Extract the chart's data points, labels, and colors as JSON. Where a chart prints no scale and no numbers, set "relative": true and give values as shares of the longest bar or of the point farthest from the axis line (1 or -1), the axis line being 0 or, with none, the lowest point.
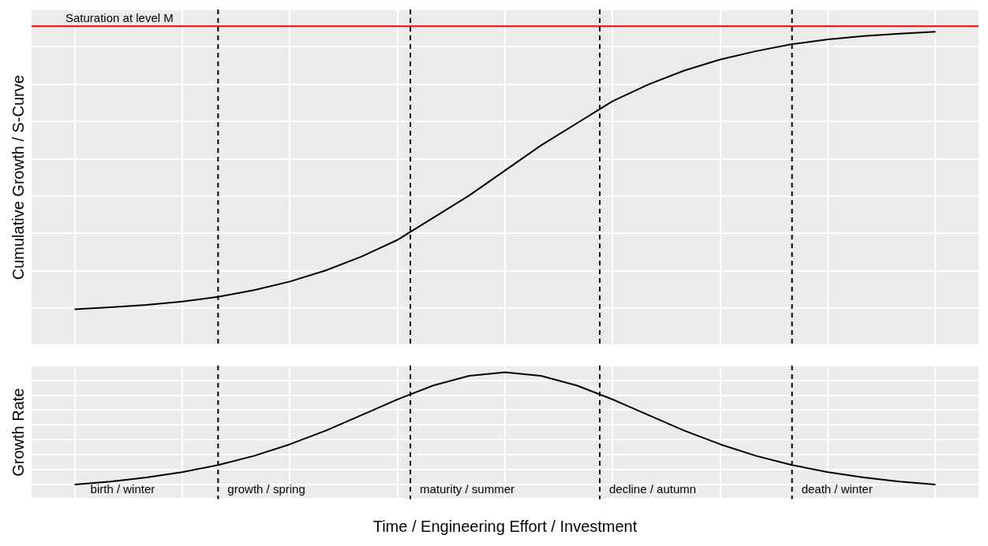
{
  "chart_data": [
    {
      "type": "line",
      "ylabel": "Cumulative Growth / S-Curve",
      "relative": true,
      "grid": true,
      "categories": [
        null,
        null,
        null,
        null,
        null,
        null,
        null,
        null,
        null,
        null,
        null,
        null,
        null,
        null,
        null,
        null,
        null,
        null,
        null,
        null,
        null,
        null,
        null,
        null,
        null
      ],
      "series": [
        {
          "color": "#000000",
          "values": [
            0,
            0.007,
            0.016,
            0.028,
            0.045,
            0.069,
            0.1,
            0.14,
            0.19,
            0.25,
            0.33,
            0.41,
            0.5,
            0.59,
            0.67,
            0.75,
            0.81,
            0.86,
            0.9,
            0.93,
            0.955,
            0.972,
            0.984,
            0.993,
            1
          ]
        }
      ],
      "annotations": [
        "Saturation at level M"
      ]
    },
    {
      "type": "line",
      "ylabel": "Growth Rate",
      "xlabel": "Time / Engineering Effort / Investment",
      "relative": true,
      "grid": true,
      "categories": [
        null,
        null,
        null,
        null,
        null,
        null,
        null,
        null,
        null,
        null,
        null,
        null,
        null,
        null,
        null,
        null,
        null,
        null,
        null,
        null,
        null,
        null,
        null,
        null,
        null
      ],
      "series": [
        {
          "color": "#000000",
          "values": [
            0,
            0.026,
            0.062,
            0.11,
            0.173,
            0.255,
            0.358,
            0.48,
            0.618,
            0.758,
            0.883,
            0.969,
            1,
            0.969,
            0.883,
            0.758,
            0.618,
            0.48,
            0.358,
            0.255,
            0.173,
            0.11,
            0.062,
            0.026,
            0
          ]
        }
      ],
      "annotations": [
        "birth / winter",
        "growth / spring",
        "maturity / summer",
        "decline / autumn",
        "death / winter"
      ]
    }
  ]
}
